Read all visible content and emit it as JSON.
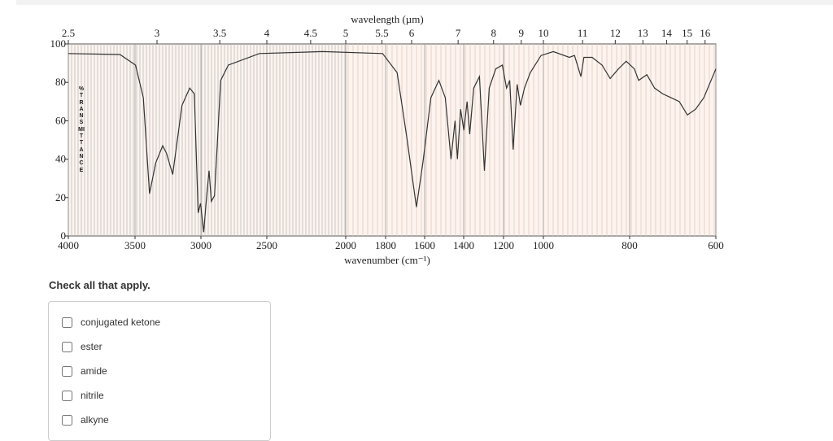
{
  "chart_data": {
    "type": "line",
    "x2label": "wavelength (µm)",
    "xlabel": "wavenumber (cm⁻¹)",
    "ylabel": "%TRANSMITTANCE",
    "color": "#333333",
    "xlim": [
      4000,
      600
    ],
    "xticks": [
      4000,
      3500,
      3000,
      2500,
      2000,
      1800,
      1600,
      1400,
      1200,
      1000,
      800,
      600
    ],
    "x2ticks": [
      2.5,
      3,
      3.5,
      4,
      4.5,
      5,
      5.5,
      6,
      7,
      8,
      9,
      10,
      11,
      12,
      13,
      14,
      15,
      16
    ],
    "ylim": [
      0,
      100
    ],
    "yticks": [
      0,
      20,
      40,
      60,
      80,
      100
    ],
    "x": [
      4000,
      3613,
      3496,
      3437,
      3390,
      3343,
      3290,
      3261,
      3214,
      3144,
      3085,
      3050,
      3021,
      3003,
      2979,
      2956,
      2938,
      2921,
      2897,
      2850,
      2792,
      2557,
      2147,
      1815,
      1741,
      1691,
      1642,
      1609,
      1568,
      1527,
      1494,
      1465,
      1444,
      1432,
      1416,
      1399,
      1383,
      1370,
      1350,
      1321,
      1296,
      1272,
      1239,
      1206,
      1185,
      1169,
      1152,
      1132,
      1115,
      1095,
      1066,
      1012,
      977,
      940,
      928,
      913,
      906,
      887,
      864,
      845,
      826,
      808,
      789,
      779,
      760,
      742,
      723,
      704,
      685,
      666,
      647,
      628,
      600
    ],
    "values": [
      95,
      94.5,
      89,
      72,
      22,
      38,
      47,
      43,
      32,
      68,
      77,
      74,
      12,
      17,
      2,
      21,
      34,
      18,
      21,
      81,
      89,
      95,
      96,
      95,
      85,
      51,
      15,
      38,
      72,
      81,
      72,
      40,
      60,
      40,
      66,
      55,
      70,
      53,
      77,
      83,
      34,
      77,
      87,
      89,
      77,
      81,
      45,
      79,
      68,
      77,
      85,
      94,
      96,
      93,
      94,
      83,
      93,
      93,
      89,
      82,
      87,
      91,
      87,
      81,
      84,
      77,
      74,
      72,
      70,
      63,
      66,
      72,
      87
    ]
  },
  "question": {
    "prompt": "Check all that apply.",
    "options": [
      "conjugated ketone",
      "ester",
      "amide",
      "nitrile",
      "alkyne"
    ]
  }
}
